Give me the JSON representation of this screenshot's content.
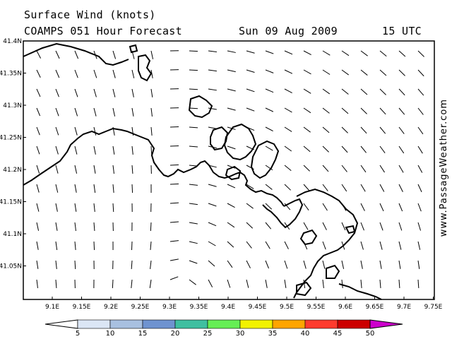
{
  "header": {
    "title_line1": "Surface Wind (knots)",
    "model_run": "COAMPS 051 Hour Forecast",
    "valid_date": "Sun 09 Aug 2009",
    "valid_time": "15 UTC"
  },
  "watermark": "www.PassageWeather.com",
  "map": {
    "lat_ticks": [
      "41.4N",
      "41.35N",
      "41.3N",
      "41.25N",
      "41.2N",
      "41.15N",
      "41.1N",
      "41.05N"
    ],
    "lon_ticks": [
      "9.1E",
      "9.15E",
      "9.2E",
      "9.25E",
      "9.3E",
      "9.35E",
      "9.4E",
      "9.45E",
      "9.5E",
      "9.55E",
      "9.6E",
      "9.65E",
      "9.7E",
      "9.75E"
    ],
    "coastline_color": "#000000",
    "wind_barb_color": "#000000"
  },
  "colorbar": {
    "labels": [
      "5",
      "10",
      "15",
      "20",
      "25",
      "30",
      "35",
      "40",
      "45",
      "50"
    ],
    "colors": [
      "#ffffff",
      "#dbe6f5",
      "#a8c0e0",
      "#6f93d0",
      "#3fbfa0",
      "#66ee55",
      "#f2f200",
      "#ffa500",
      "#ff3b2e",
      "#cc0000",
      "#cc00cc"
    ]
  }
}
